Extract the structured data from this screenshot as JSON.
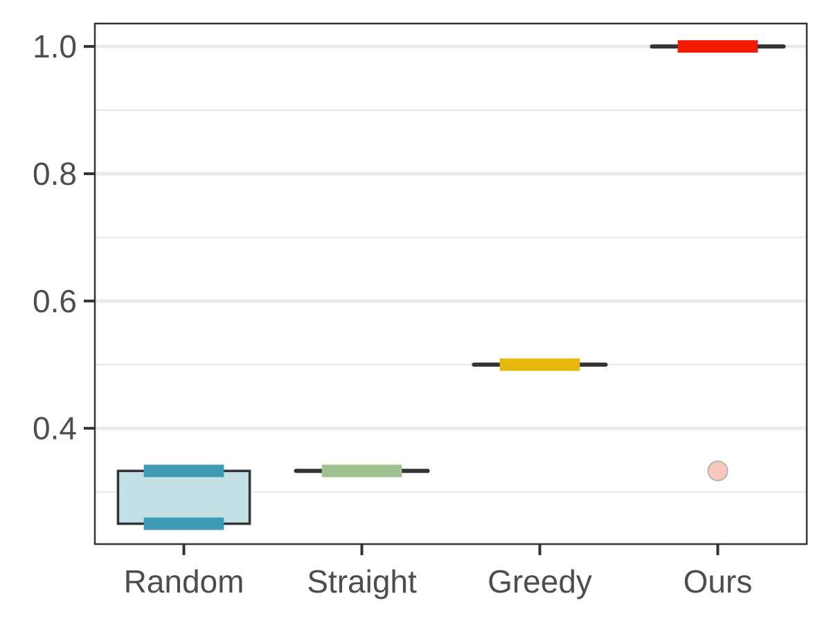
{
  "chart_data": {
    "type": "boxplot",
    "title": "",
    "xlabel": "",
    "ylabel": "",
    "ylim": [
      0.218,
      1.036
    ],
    "yticks": [
      0.4,
      0.6,
      0.8,
      1.0
    ],
    "ytick_labels": [
      "0.4",
      "0.6",
      "0.8",
      "1.0"
    ],
    "minor_gridlines": [
      0.3,
      0.5,
      0.7,
      0.9
    ],
    "grid": "horizontal",
    "categories": [
      "Random",
      "Straight",
      "Greedy",
      "Ours"
    ],
    "boxes": [
      {
        "category": "Random",
        "min": 0.25,
        "q1": 0.25,
        "median": 0.333,
        "q3": 0.333,
        "max": 0.333,
        "outliers": [],
        "color": "#3e9ab5",
        "fill": "#c3e0e7"
      },
      {
        "category": "Straight",
        "min": 0.333,
        "q1": 0.333,
        "median": 0.333,
        "q3": 0.333,
        "max": 0.333,
        "outliers": [],
        "color": "#9fc08f",
        "fill": "#e3ecdd"
      },
      {
        "category": "Greedy",
        "min": 0.5,
        "q1": 0.5,
        "median": 0.5,
        "q3": 0.5,
        "max": 0.5,
        "outliers": [],
        "color": "#e6b810",
        "fill": "#f7ebbf"
      },
      {
        "category": "Ours",
        "min": 1.0,
        "q1": 1.0,
        "median": 1.0,
        "q3": 1.0,
        "max": 1.0,
        "outliers": [
          0.333
        ],
        "color": "#f21b00",
        "fill": "#fbc8c0"
      }
    ]
  }
}
